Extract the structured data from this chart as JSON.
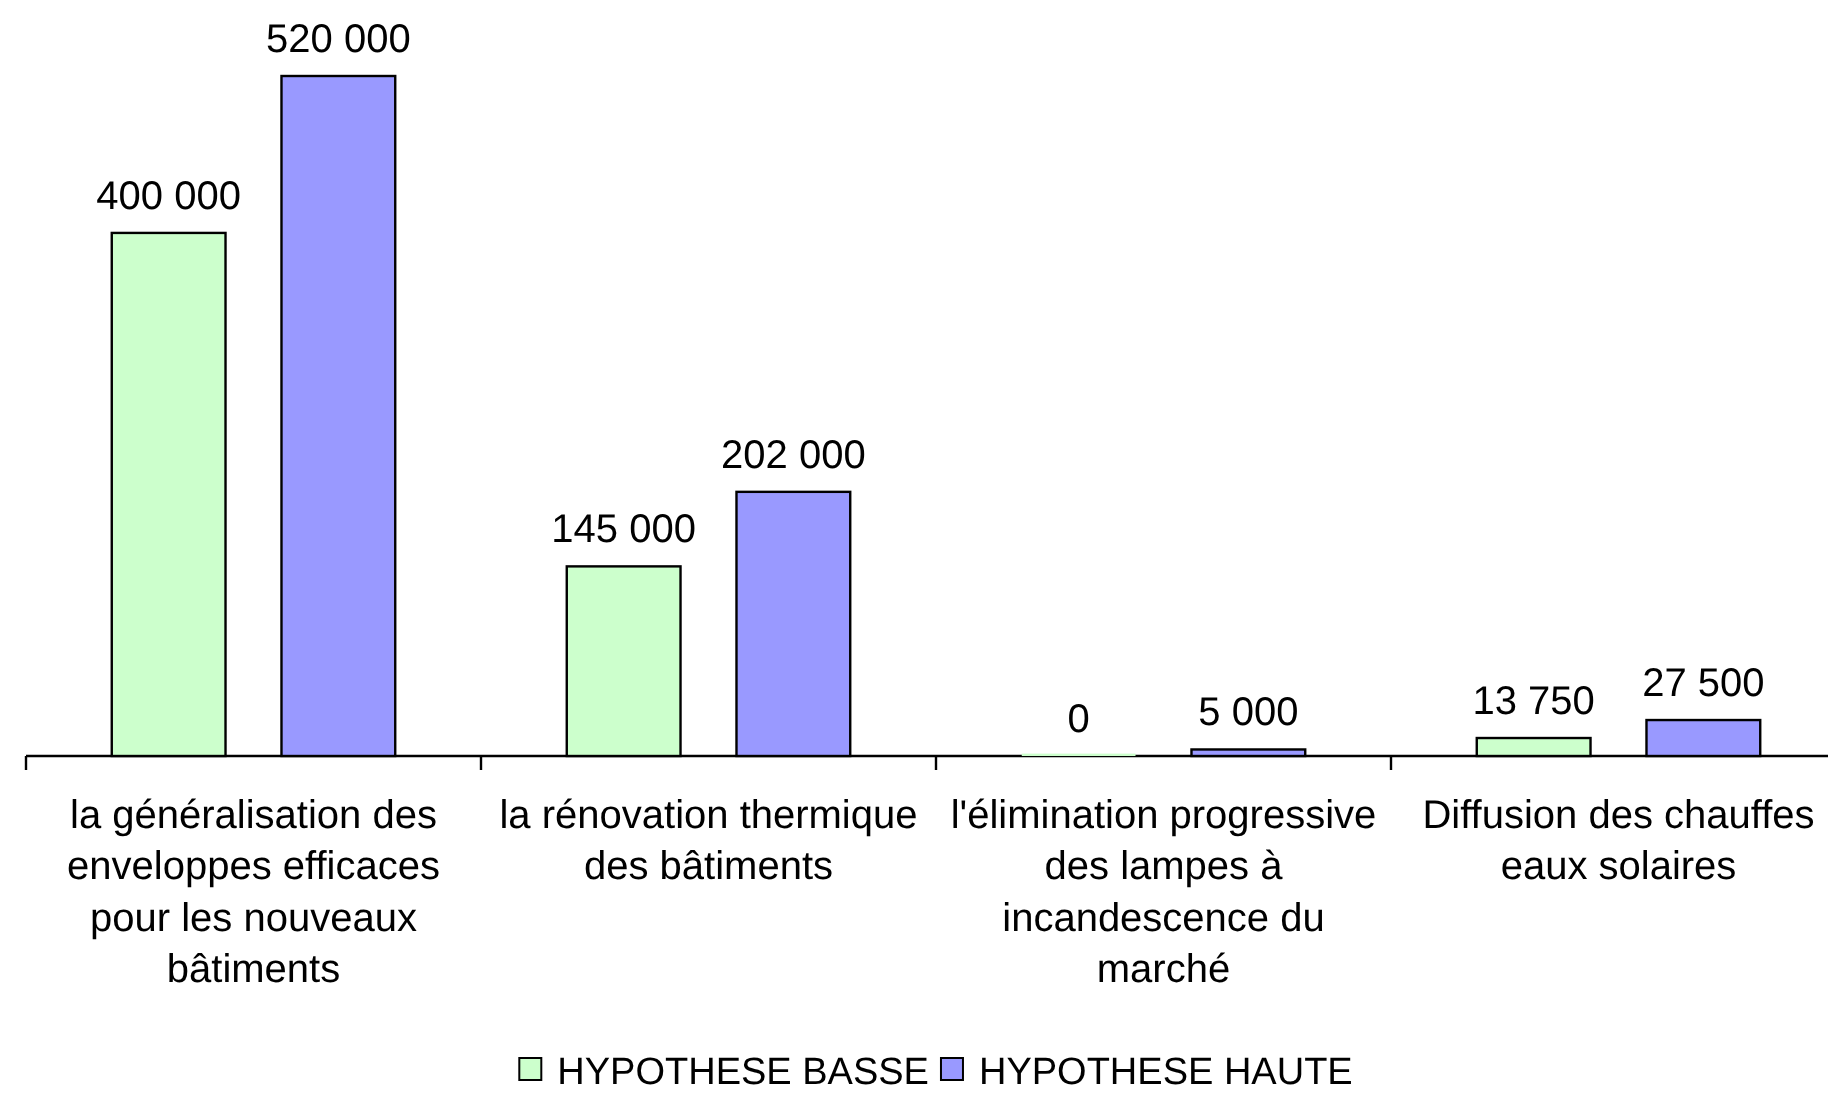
{
  "chart_data": {
    "type": "bar",
    "categories": [
      "la généralisation des enveloppes efficaces pour les nouveaux bâtiments",
      "la rénovation thermique des bâtiments",
      "l'élimination progressive des lampes à incandescence du marché",
      "Diffusion des chauffes eaux solaires"
    ],
    "series": [
      {
        "name": "HYPOTHESE BASSE",
        "color": "#ccffcc",
        "values": [
          400000,
          145000,
          0,
          13750
        ],
        "value_labels": [
          "400 000",
          "145 000",
          "0",
          "13 750"
        ]
      },
      {
        "name": "HYPOTHESE HAUTE",
        "color": "#9999ff",
        "values": [
          520000,
          202000,
          5000,
          27500
        ],
        "value_labels": [
          "520 000",
          "202 000",
          "5 000",
          "27 500"
        ]
      }
    ],
    "legend": "bottom"
  }
}
